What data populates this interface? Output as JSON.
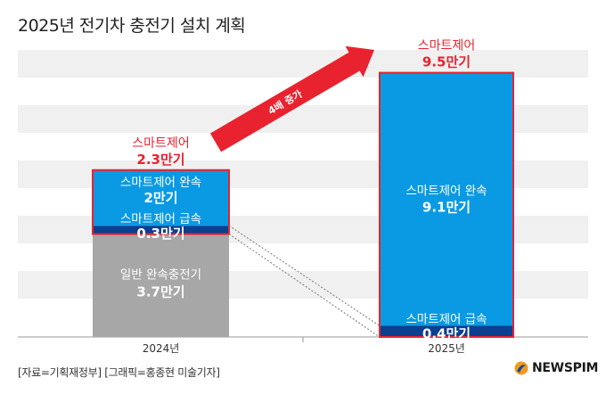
{
  "title": "2025년 전기차 충전기 설치 계획",
  "source": "[자료=기획재정부] [그래픽=홍종현 미술기자]",
  "logo": "NEWSPIM",
  "arrow_label": "4배 증가",
  "colors": {
    "general_slow": "#a7a7a7",
    "smart_slow": "#0a9ae3",
    "smart_fast": "#0b3f8f",
    "highlight": "#e8232f",
    "band": "#f0f0f0"
  },
  "chart_data": {
    "type": "bar",
    "stacked": true,
    "unit": "만기",
    "categories": [
      "2024년",
      "2025년"
    ],
    "ylim": [
      0,
      10
    ],
    "series": [
      {
        "name": "일반 완속충전기",
        "values": [
          3.7,
          0
        ]
      },
      {
        "name": "스마트제어 급속",
        "values": [
          0.3,
          0.4
        ]
      },
      {
        "name": "스마트제어 완속",
        "values": [
          2,
          9.1
        ]
      }
    ],
    "segment_labels": {
      "2024": [
        {
          "series": "일반 완속충전기",
          "name": "일반 완속충전기",
          "value": "3.7만기"
        },
        {
          "series": "스마트제어 급속",
          "name": "스마트제어 급속",
          "value": "0.3만기"
        },
        {
          "series": "스마트제어 완속",
          "name": "스마트제어 완속",
          "value": "2만기"
        }
      ],
      "2025": [
        {
          "series": "스마트제어 급속",
          "name": "스마트제어 급속",
          "value": "0.4만기"
        },
        {
          "series": "스마트제어 완속",
          "name": "스마트제어 완속",
          "value": "9.1만기"
        }
      ]
    },
    "totals": [
      {
        "name": "스마트제어",
        "value": "2.3만기"
      },
      {
        "name": "스마트제어",
        "value": "9.5만기"
      }
    ]
  }
}
